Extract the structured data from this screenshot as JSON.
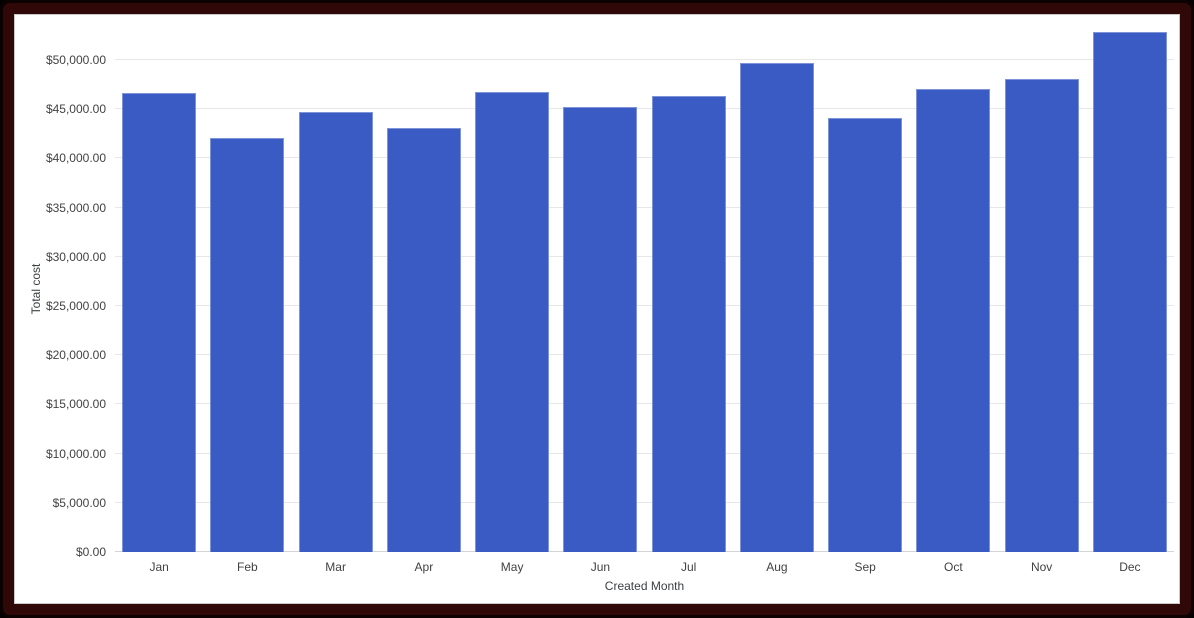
{
  "chart": {
    "colors": {
      "bar": "#3B5BC4",
      "bar_edge": "rgba(255,255,255,0.35)",
      "grid": "#e7e7e7",
      "axis_text": "#424242",
      "frame": "#300808",
      "frame_edge": "#0c0202",
      "background": "#ffffff"
    }
  },
  "chart_data": {
    "type": "bar",
    "title": "",
    "xlabel": "Created Month",
    "ylabel": "Total cost",
    "categories": [
      "Jan",
      "Feb",
      "Mar",
      "Apr",
      "May",
      "Jun",
      "Jul",
      "Aug",
      "Sep",
      "Oct",
      "Nov",
      "Dec"
    ],
    "values": [
      46600,
      42100,
      44700,
      43100,
      46800,
      45200,
      46300,
      49700,
      44100,
      47100,
      48100,
      52900
    ],
    "series_name": "Total cost",
    "grid": true,
    "legend": "none",
    "ylim": [
      0,
      53560
    ],
    "ytick_labeled_max": 50000,
    "yticks": [
      {
        "value": 0,
        "label": "$0.00"
      },
      {
        "value": 5000,
        "label": "$5,000.00"
      },
      {
        "value": 10000,
        "label": "$10,000.00"
      },
      {
        "value": 15000,
        "label": "$15,000.00"
      },
      {
        "value": 20000,
        "label": "$20,000.00"
      },
      {
        "value": 25000,
        "label": "$25,000.00"
      },
      {
        "value": 30000,
        "label": "$30,000.00"
      },
      {
        "value": 35000,
        "label": "$35,000.00"
      },
      {
        "value": 40000,
        "label": "$40,000.00"
      },
      {
        "value": 45000,
        "label": "$45,000.00"
      },
      {
        "value": 50000,
        "label": "$50,000.00"
      }
    ]
  }
}
